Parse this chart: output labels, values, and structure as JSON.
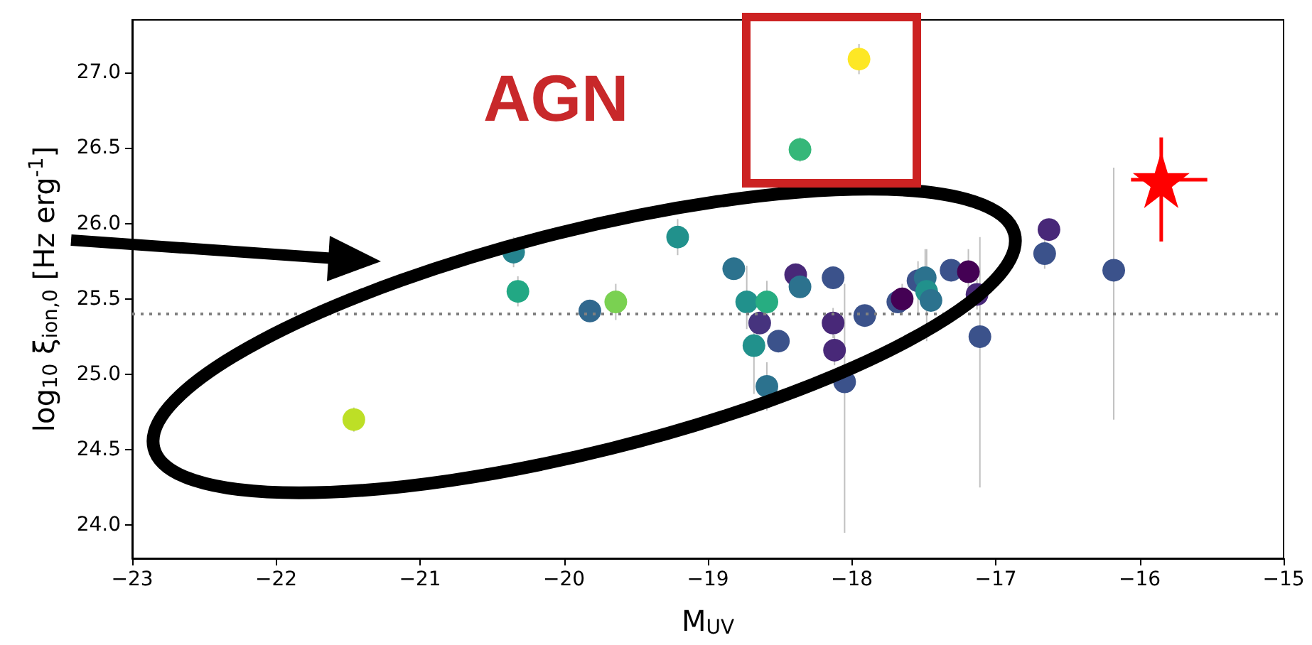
{
  "chart_data": {
    "type": "scatter",
    "xlabel": "M$_{UV}$",
    "ylabel": "log$_{10}$ ξ$_{ion,0}$ [Hz erg$^{-1}$]",
    "xlim": [
      -23,
      -15
    ],
    "ylim": [
      23.78,
      27.35
    ],
    "xticks": [
      {
        "value": -23,
        "label": "−23"
      },
      {
        "value": -22,
        "label": "−22"
      },
      {
        "value": -21,
        "label": "−21"
      },
      {
        "value": -20,
        "label": "−20"
      },
      {
        "value": -19,
        "label": "−19"
      },
      {
        "value": -18,
        "label": "−18"
      },
      {
        "value": -17,
        "label": "−17"
      },
      {
        "value": -16,
        "label": "−16"
      },
      {
        "value": -15,
        "label": "−15"
      }
    ],
    "yticks": [
      {
        "value": 24,
        "label": "24.0"
      },
      {
        "value": 24.5,
        "label": "24.5"
      },
      {
        "value": 25,
        "label": "25.0"
      },
      {
        "value": 25.5,
        "label": "25.5"
      },
      {
        "value": 26,
        "label": "26.0"
      },
      {
        "value": 26.5,
        "label": "26.5"
      },
      {
        "value": 27,
        "label": "27.0"
      }
    ],
    "grid": false,
    "annotations": [
      "AGN"
    ],
    "ref_lines": [
      {
        "axis": "y",
        "value": 25.4,
        "color": "#808080",
        "line_style": "dotted"
      }
    ],
    "series": [
      {
        "marker": "circle",
        "x": [
          -21.46,
          -20.35,
          -20.32,
          -19.82,
          -19.64,
          -19.21,
          -18.82,
          -18.73,
          -18.68,
          -18.64,
          -18.59,
          -18.59,
          -18.51,
          -18.39,
          -18.36,
          -18.36,
          -18.13,
          -18.13,
          -18.12,
          -18.05,
          -17.95,
          -17.91,
          -17.68,
          -17.65,
          -17.54,
          -17.49,
          -17.48,
          -17.45,
          -17.31,
          -17.19,
          -17.13,
          -17.11,
          -16.66,
          -16.63,
          -16.18
        ],
        "values": [
          24.7,
          25.81,
          25.55,
          25.42,
          25.48,
          25.91,
          25.7,
          25.48,
          25.19,
          25.34,
          25.48,
          24.92,
          25.22,
          25.66,
          25.58,
          26.49,
          25.64,
          25.34,
          25.16,
          24.95,
          27.09,
          25.39,
          25.48,
          25.5,
          25.62,
          25.64,
          25.55,
          25.49,
          25.69,
          25.68,
          25.53,
          25.25,
          25.8,
          25.96,
          25.69
        ],
        "errors": [
          0.08,
          0.1,
          0.1,
          null,
          0.12,
          0.12,
          null,
          [
            25.3,
            25.72
          ],
          [
            24.87,
            25.3
          ],
          null,
          [
            25.38,
            25.62
          ],
          [
            24.76,
            25.08
          ],
          null,
          null,
          null,
          0.08,
          null,
          0.1,
          0.1,
          [
            23.95,
            25.6
          ],
          0.1,
          null,
          null,
          0.1,
          [
            25.4,
            25.75
          ],
          [
            25.5,
            25.83
          ],
          [
            25.22,
            25.83
          ],
          null,
          null,
          [
            25.55,
            25.83
          ],
          0.1,
          [
            24.25,
            25.91
          ],
          0.1,
          null,
          [
            24.7,
            26.37
          ]
        ],
        "colors": [
          "#bddf26",
          "#25848e",
          "#22a884",
          "#31688e",
          "#7ad151",
          "#21918c",
          "#2c728e",
          "#21918c",
          "#21918c",
          "#46337e",
          "#27ad81",
          "#2c728e",
          "#3b528b",
          "#482878",
          "#2c728e",
          "#35b779",
          "#3b528b",
          "#482878",
          "#482878",
          "#3b528b",
          "#fde725",
          "#3b528b",
          "#3b528b",
          "#440154",
          "#3b528b",
          "#2c728e",
          "#21918c",
          "#2c728e",
          "#3b528b",
          "#440154",
          "#482878",
          "#3b528b",
          "#3b528b",
          "#482878",
          "#3b528b"
        ]
      },
      {
        "marker": "star",
        "color": "#ff0000",
        "x": [
          -15.85
        ],
        "values": [
          26.29
        ],
        "errors": [
          [
            25.88,
            26.57
          ]
        ],
        "xerrors": [
          [
            -16.06,
            -15.53
          ]
        ]
      }
    ]
  }
}
